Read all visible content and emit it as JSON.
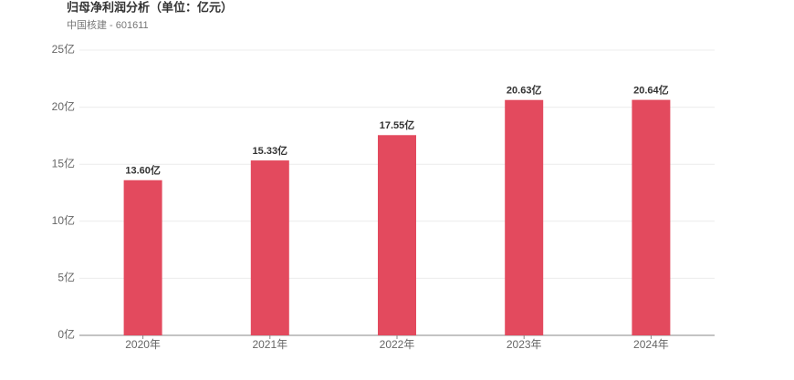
{
  "chart_data": {
    "type": "bar",
    "title": "归母净利润分析（单位：亿元）",
    "subtitle": "中国核建 - 601611",
    "categories": [
      "2020年",
      "2021年",
      "2022年",
      "2023年",
      "2024年"
    ],
    "values": [
      13.6,
      15.33,
      17.55,
      20.63,
      20.64
    ],
    "value_labels": [
      "13.60亿",
      "15.33亿",
      "17.55亿",
      "20.63亿",
      "20.64亿"
    ],
    "color": "#e34a5e",
    "ylim": [
      0,
      25
    ],
    "yticks": [
      {
        "value": 0,
        "label": "0亿"
      },
      {
        "value": 5,
        "label": "5亿"
      },
      {
        "value": 10,
        "label": "10亿"
      },
      {
        "value": 15,
        "label": "15亿"
      },
      {
        "value": 20,
        "label": "20亿"
      },
      {
        "value": 25,
        "label": "25亿"
      }
    ],
    "grid": true
  }
}
